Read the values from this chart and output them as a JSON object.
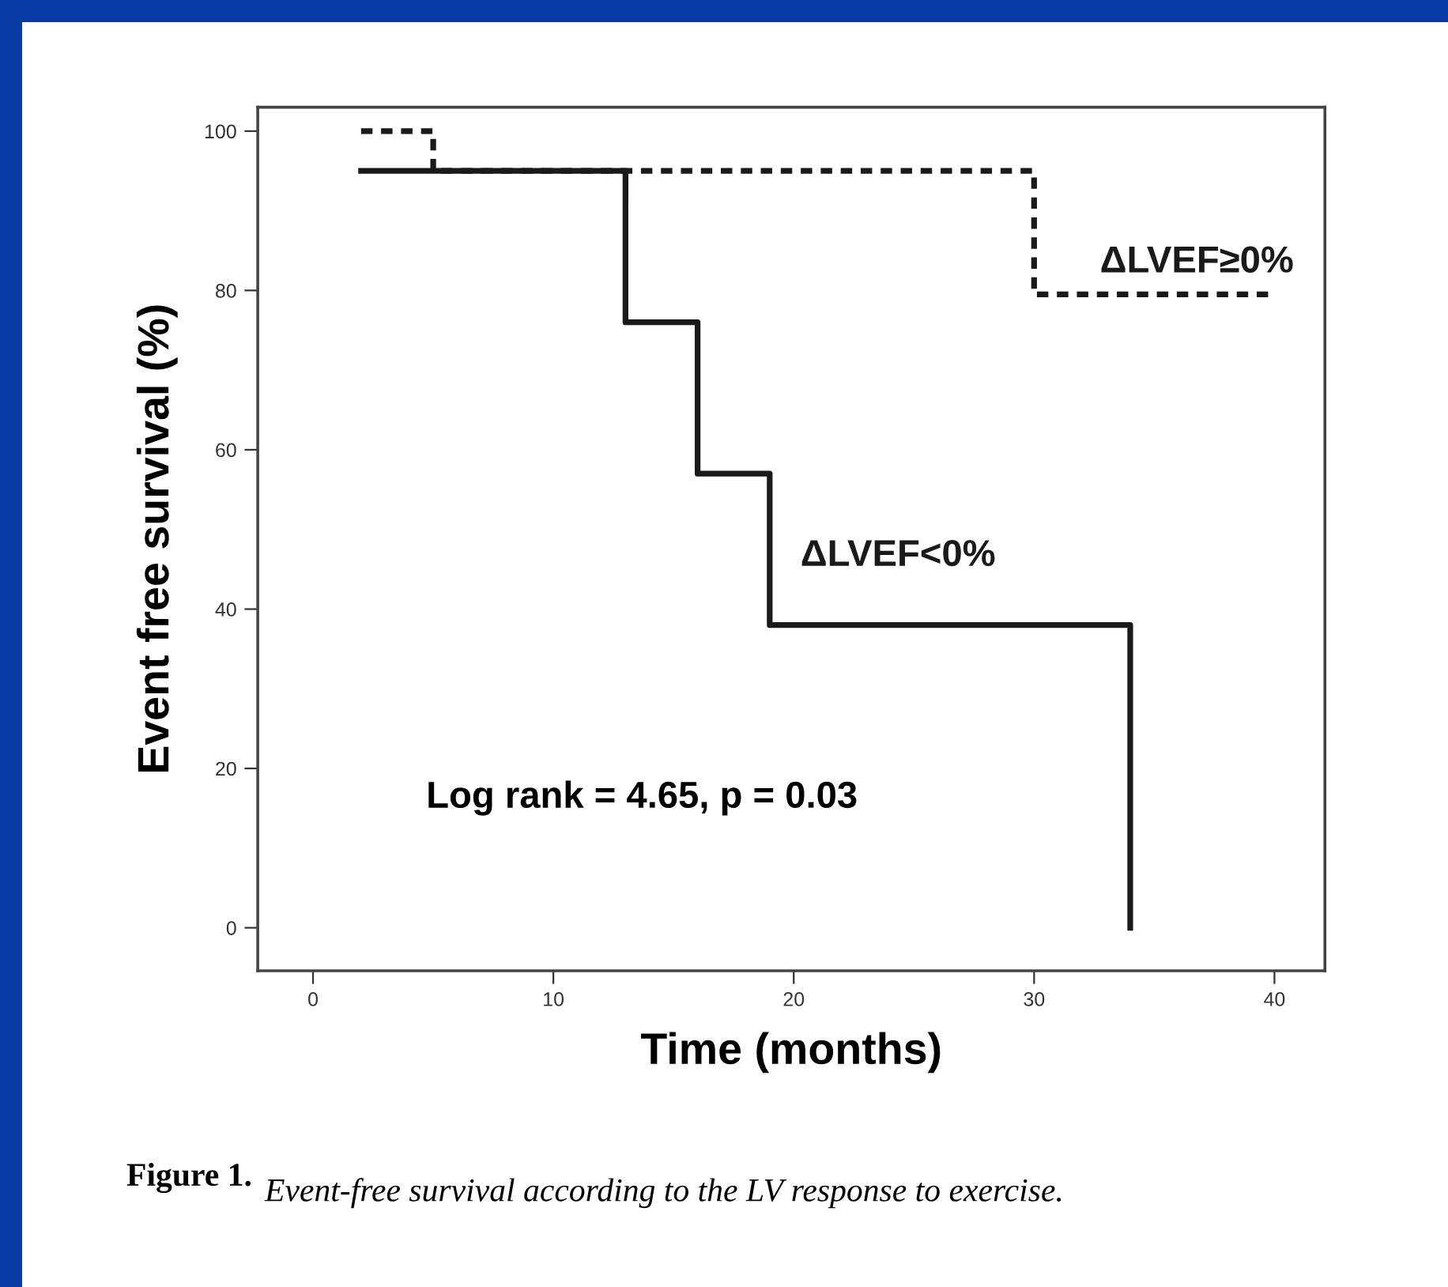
{
  "chart_data": {
    "type": "step",
    "xlabel": "Time (months)",
    "ylabel": "Event free survival (%)",
    "xlim": [
      -2.3,
      42.1
    ],
    "ylim": [
      -5.4,
      103
    ],
    "xticks": [
      0,
      10,
      20,
      30,
      40
    ],
    "yticks": [
      0,
      20,
      40,
      60,
      80,
      100
    ],
    "grid": false,
    "legend": false,
    "marker": "none",
    "series": [
      {
        "name": "ΔLVEF≥0%",
        "color": "#1a1a1a",
        "line_style": "dotted",
        "x": [
          2,
          5,
          30,
          40
        ],
        "values": [
          100,
          95,
          79.5,
          79.5
        ]
      },
      {
        "name": "ΔLVEF<0%",
        "color": "#1a1a1a",
        "line_style": "solid",
        "x": [
          2,
          13,
          16,
          19,
          34
        ],
        "values": [
          95,
          76,
          57,
          38,
          0
        ]
      }
    ],
    "annotations": [
      "Log rank = 4.65, p = 0.03",
      "Figure 1.",
      "Event-free survival according to the LV response to exercise."
    ]
  }
}
